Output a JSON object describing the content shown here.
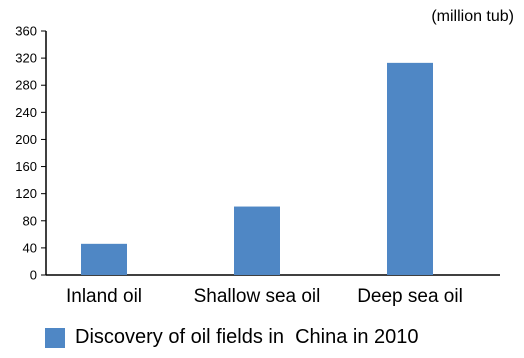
{
  "chart_data": {
    "type": "bar",
    "unit_label": "(million tub)",
    "categories": [
      "Inland oil",
      "Shallow sea oil",
      "Deep sea oil"
    ],
    "series": [
      {
        "name": "Discovery of oil fields in  China in 2010",
        "values": [
          46,
          101,
          313
        ]
      }
    ],
    "y_ticks": [
      "0",
      "40",
      "80",
      "120",
      "160",
      "200",
      "240",
      "280",
      "320",
      "360"
    ],
    "ylim": [
      0,
      360
    ],
    "grid": false,
    "legend_position": "bottom",
    "bar_color": "#4f87c5"
  }
}
